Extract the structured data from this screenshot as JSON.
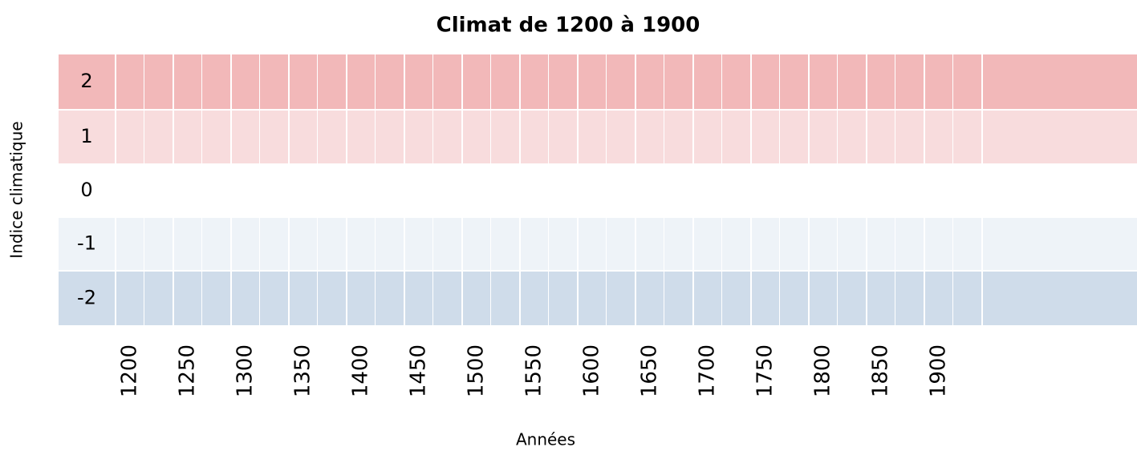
{
  "chart_data": {
    "type": "band-grid",
    "title": "Climat de 1200 à 1900",
    "x_label": "Années",
    "y_label": "Indice climatique",
    "x_categories": [
      "1200",
      "1250",
      "1300",
      "1350",
      "1400",
      "1450",
      "1500",
      "1550",
      "1600",
      "1650",
      "1700",
      "1750",
      "1800",
      "1850",
      "1900"
    ],
    "rows": [
      {
        "label": "2",
        "color": "#f2b8b9"
      },
      {
        "label": "1",
        "color": "#f8dcdd"
      },
      {
        "label": "0",
        "color": "#ffffff"
      },
      {
        "label": "-1",
        "color": "#eef3f8"
      },
      {
        "label": "-2",
        "color": "#cfdcea"
      }
    ]
  }
}
